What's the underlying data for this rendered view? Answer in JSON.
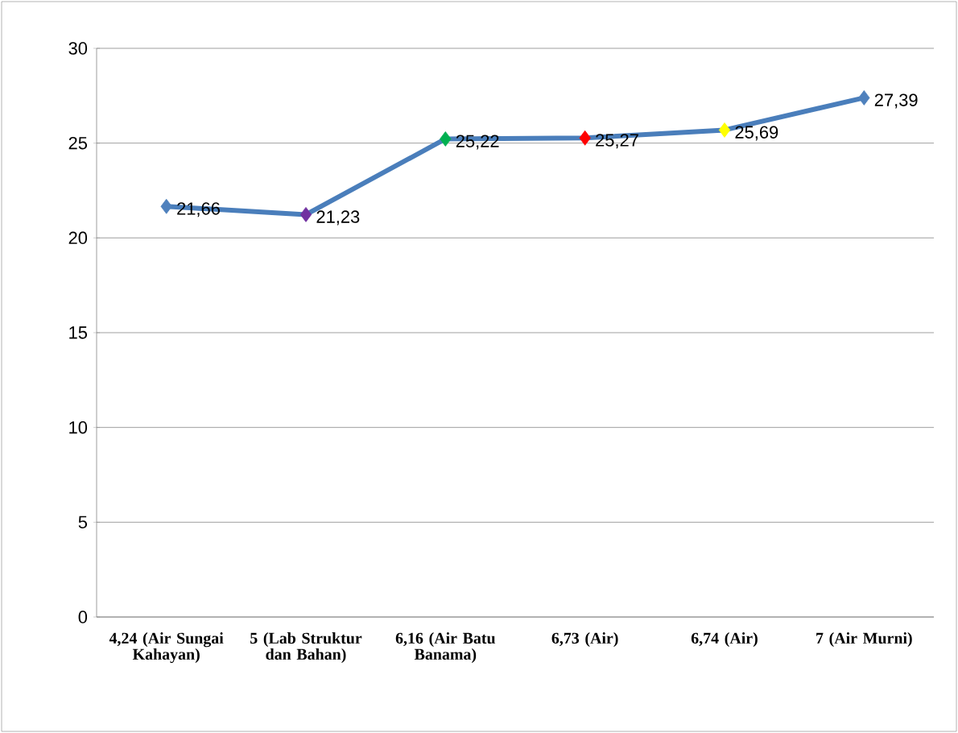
{
  "chart_data": {
    "type": "line",
    "categories": [
      "4,24 (Air Sungai Kahayan)",
      "5 (Lab Struktur dan Bahan)",
      "6,16 (Air Batu Banama)",
      "6,73 (Air)",
      "6,74 (Air)",
      "7 (Air Murni)"
    ],
    "series": [
      {
        "color": "#4a7ebb",
        "values": [
          21.66,
          21.23,
          25.22,
          25.27,
          25.69,
          27.39
        ],
        "colors": [
          "#4f81bd",
          "#7030a0",
          "#00b050",
          "#ff0000",
          "#ffff00",
          "#4f81bd"
        ],
        "value_labels": [
          "21,66",
          "21,23",
          "25,22",
          "25,27",
          "25,69",
          "27,39"
        ]
      }
    ],
    "ylim": [
      0,
      30
    ],
    "yticks": [
      0,
      5,
      10,
      15,
      20,
      25,
      30
    ],
    "grid": "y",
    "marker": "diamond",
    "line_style": "solid"
  }
}
